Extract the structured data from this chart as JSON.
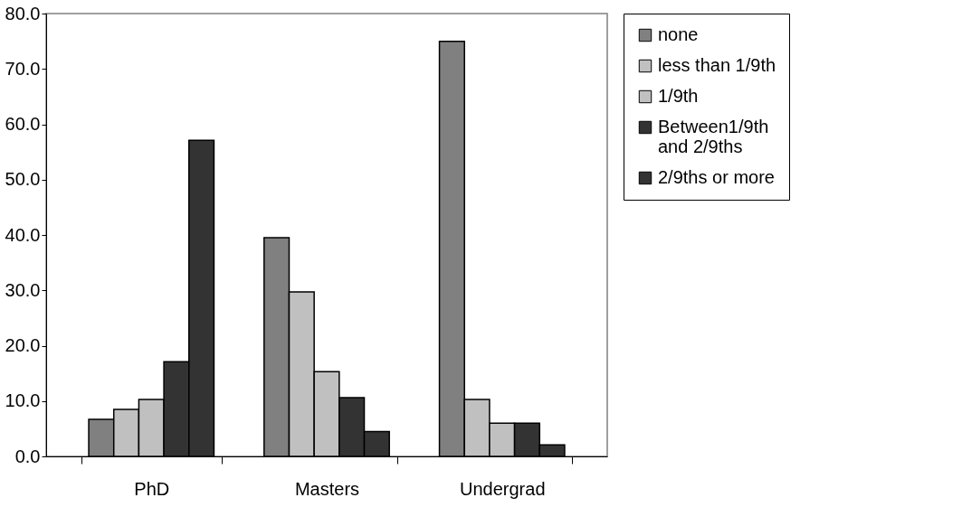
{
  "chart_data": {
    "type": "bar",
    "categories": [
      "PhD",
      "Masters",
      "Undergrad"
    ],
    "series": [
      {
        "name": "none",
        "color": "#808080",
        "values": [
          6.7,
          39.5,
          75.0
        ]
      },
      {
        "name": "less than 1/9th",
        "color": "#c0c0c0",
        "values": [
          8.5,
          29.7,
          10.3
        ]
      },
      {
        "name": "1/9th",
        "color": "#c0c0c0",
        "values": [
          10.3,
          15.3,
          6.0
        ]
      },
      {
        "name": "Between1/9th\n and 2/9ths",
        "color": "#333333",
        "values": [
          17.1,
          10.6,
          6.0
        ]
      },
      {
        "name": "2/9ths or more",
        "color": "#333333",
        "values": [
          57.1,
          4.5,
          2.1
        ]
      }
    ],
    "ylim": [
      0,
      80
    ],
    "yticks": [
      {
        "value": 0,
        "label": "0.0"
      },
      {
        "value": 10,
        "label": "10.0"
      },
      {
        "value": 20,
        "label": "20.0"
      },
      {
        "value": 30,
        "label": "30.0"
      },
      {
        "value": 40,
        "label": "40.0"
      },
      {
        "value": 50,
        "label": "50.0"
      },
      {
        "value": 60,
        "label": "60.0"
      },
      {
        "value": 70,
        "label": "70.0"
      },
      {
        "value": 80,
        "label": "80.0"
      }
    ],
    "grid": false,
    "legend": "right"
  }
}
